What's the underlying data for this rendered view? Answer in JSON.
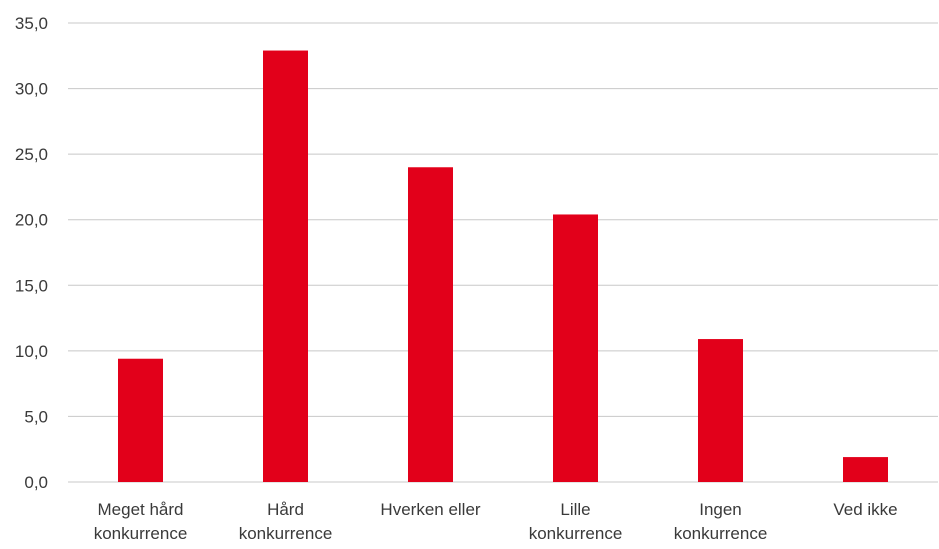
{
  "chart_data": {
    "type": "bar",
    "categories": [
      [
        "Meget hård",
        "konkurrence"
      ],
      [
        "Hård",
        "konkurrence"
      ],
      [
        "Hverken eller"
      ],
      [
        "Lille",
        "konkurrence"
      ],
      [
        "Ingen",
        "konkurrence"
      ],
      [
        "Ved ikke"
      ]
    ],
    "values": [
      9.4,
      32.9,
      24.0,
      20.4,
      10.9,
      1.9
    ],
    "ylim": [
      0,
      35
    ],
    "yticks": [
      "0,0",
      "5,0",
      "10,0",
      "15,0",
      "20,0",
      "25,0",
      "30,0",
      "35,0"
    ],
    "ytick_values": [
      0,
      5,
      10,
      15,
      20,
      25,
      30,
      35
    ],
    "grid": true,
    "legend": "none",
    "bar_color": "#e2001a",
    "title": "",
    "xlabel": "",
    "ylabel": ""
  }
}
